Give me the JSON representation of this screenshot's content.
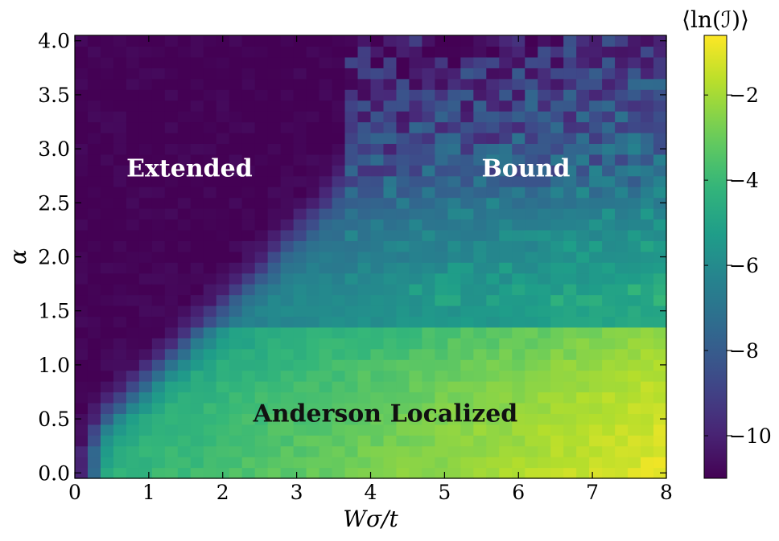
{
  "chart_data": {
    "type": "heatmap",
    "title": "",
    "xlabel": "Wσ/t",
    "ylabel": "α",
    "xlim": [
      0,
      8
    ],
    "ylim": [
      -0.05,
      4.05
    ],
    "x_ticks": [
      0,
      1,
      2,
      3,
      4,
      5,
      6,
      7,
      8
    ],
    "x_tick_labels": [
      "0",
      "1",
      "2",
      "3",
      "4",
      "5",
      "6",
      "7",
      "8"
    ],
    "y_ticks": [
      0.0,
      0.5,
      1.0,
      1.5,
      2.0,
      2.5,
      3.0,
      3.5,
      4.0
    ],
    "y_tick_labels": [
      "0.0",
      "0.5",
      "1.0",
      "1.5",
      "2.0",
      "2.5",
      "3.0",
      "3.5",
      "4.0"
    ],
    "grid": {
      "nx": 46,
      "ny": 41,
      "x_range": [
        0.0,
        8.0
      ],
      "y_range": [
        -0.05,
        4.05
      ]
    },
    "colorbar": {
      "label": "⟨ln(ℐ)⟩",
      "colormap": "viridis",
      "vmin": -11.0,
      "vmax": -0.6,
      "ticks": [
        -2,
        -4,
        -6,
        -8,
        -10
      ],
      "tick_labels": [
        "−2",
        "−4",
        "−6",
        "−8",
        "−10"
      ]
    },
    "regions": [
      {
        "label": "Extended",
        "x": 1.55,
        "y": 2.82,
        "color": "#ffffff"
      },
      {
        "label": "Bound",
        "x": 6.1,
        "y": 2.82,
        "color": "#ffffff"
      },
      {
        "label": "Anderson Localized",
        "x": 4.2,
        "y": 0.55,
        "color": "#111111"
      }
    ],
    "field_model": {
      "description_values": "approximate ⟨ln(ℐ)⟩ over (Wσ/t, α)",
      "extended_floor": -11.0,
      "localized_max": -0.7
    }
  }
}
